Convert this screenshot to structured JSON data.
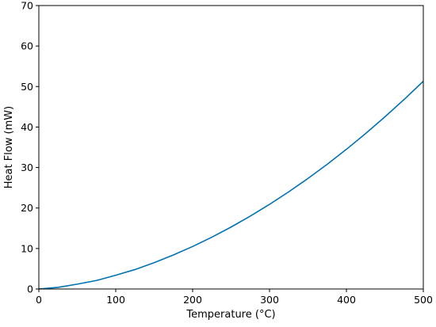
{
  "chart_data": {
    "type": "line",
    "title": "",
    "xlabel": "Temperature (°C)",
    "ylabel": "Heat Flow (mW)",
    "xlim": [
      0,
      500
    ],
    "ylim": [
      0,
      70
    ],
    "x_ticks": [
      0,
      100,
      200,
      300,
      400,
      500
    ],
    "y_ticks": [
      0,
      10,
      20,
      30,
      40,
      50,
      60,
      70
    ],
    "grid": false,
    "legend": "none",
    "series": [
      {
        "color": "#0072b2",
        "x": [
          0,
          25,
          50,
          75,
          100,
          125,
          150,
          175,
          200,
          225,
          250,
          275,
          300,
          325,
          350,
          375,
          400,
          425,
          450,
          475,
          500
        ],
        "y": [
          0,
          0.4,
          1.2,
          2.1,
          3.4,
          4.8,
          6.5,
          8.4,
          10.5,
          12.8,
          15.3,
          18.0,
          20.9,
          24.0,
          27.3,
          30.8,
          34.5,
          38.4,
          42.5,
          46.8,
          51.3
        ]
      }
    ]
  }
}
